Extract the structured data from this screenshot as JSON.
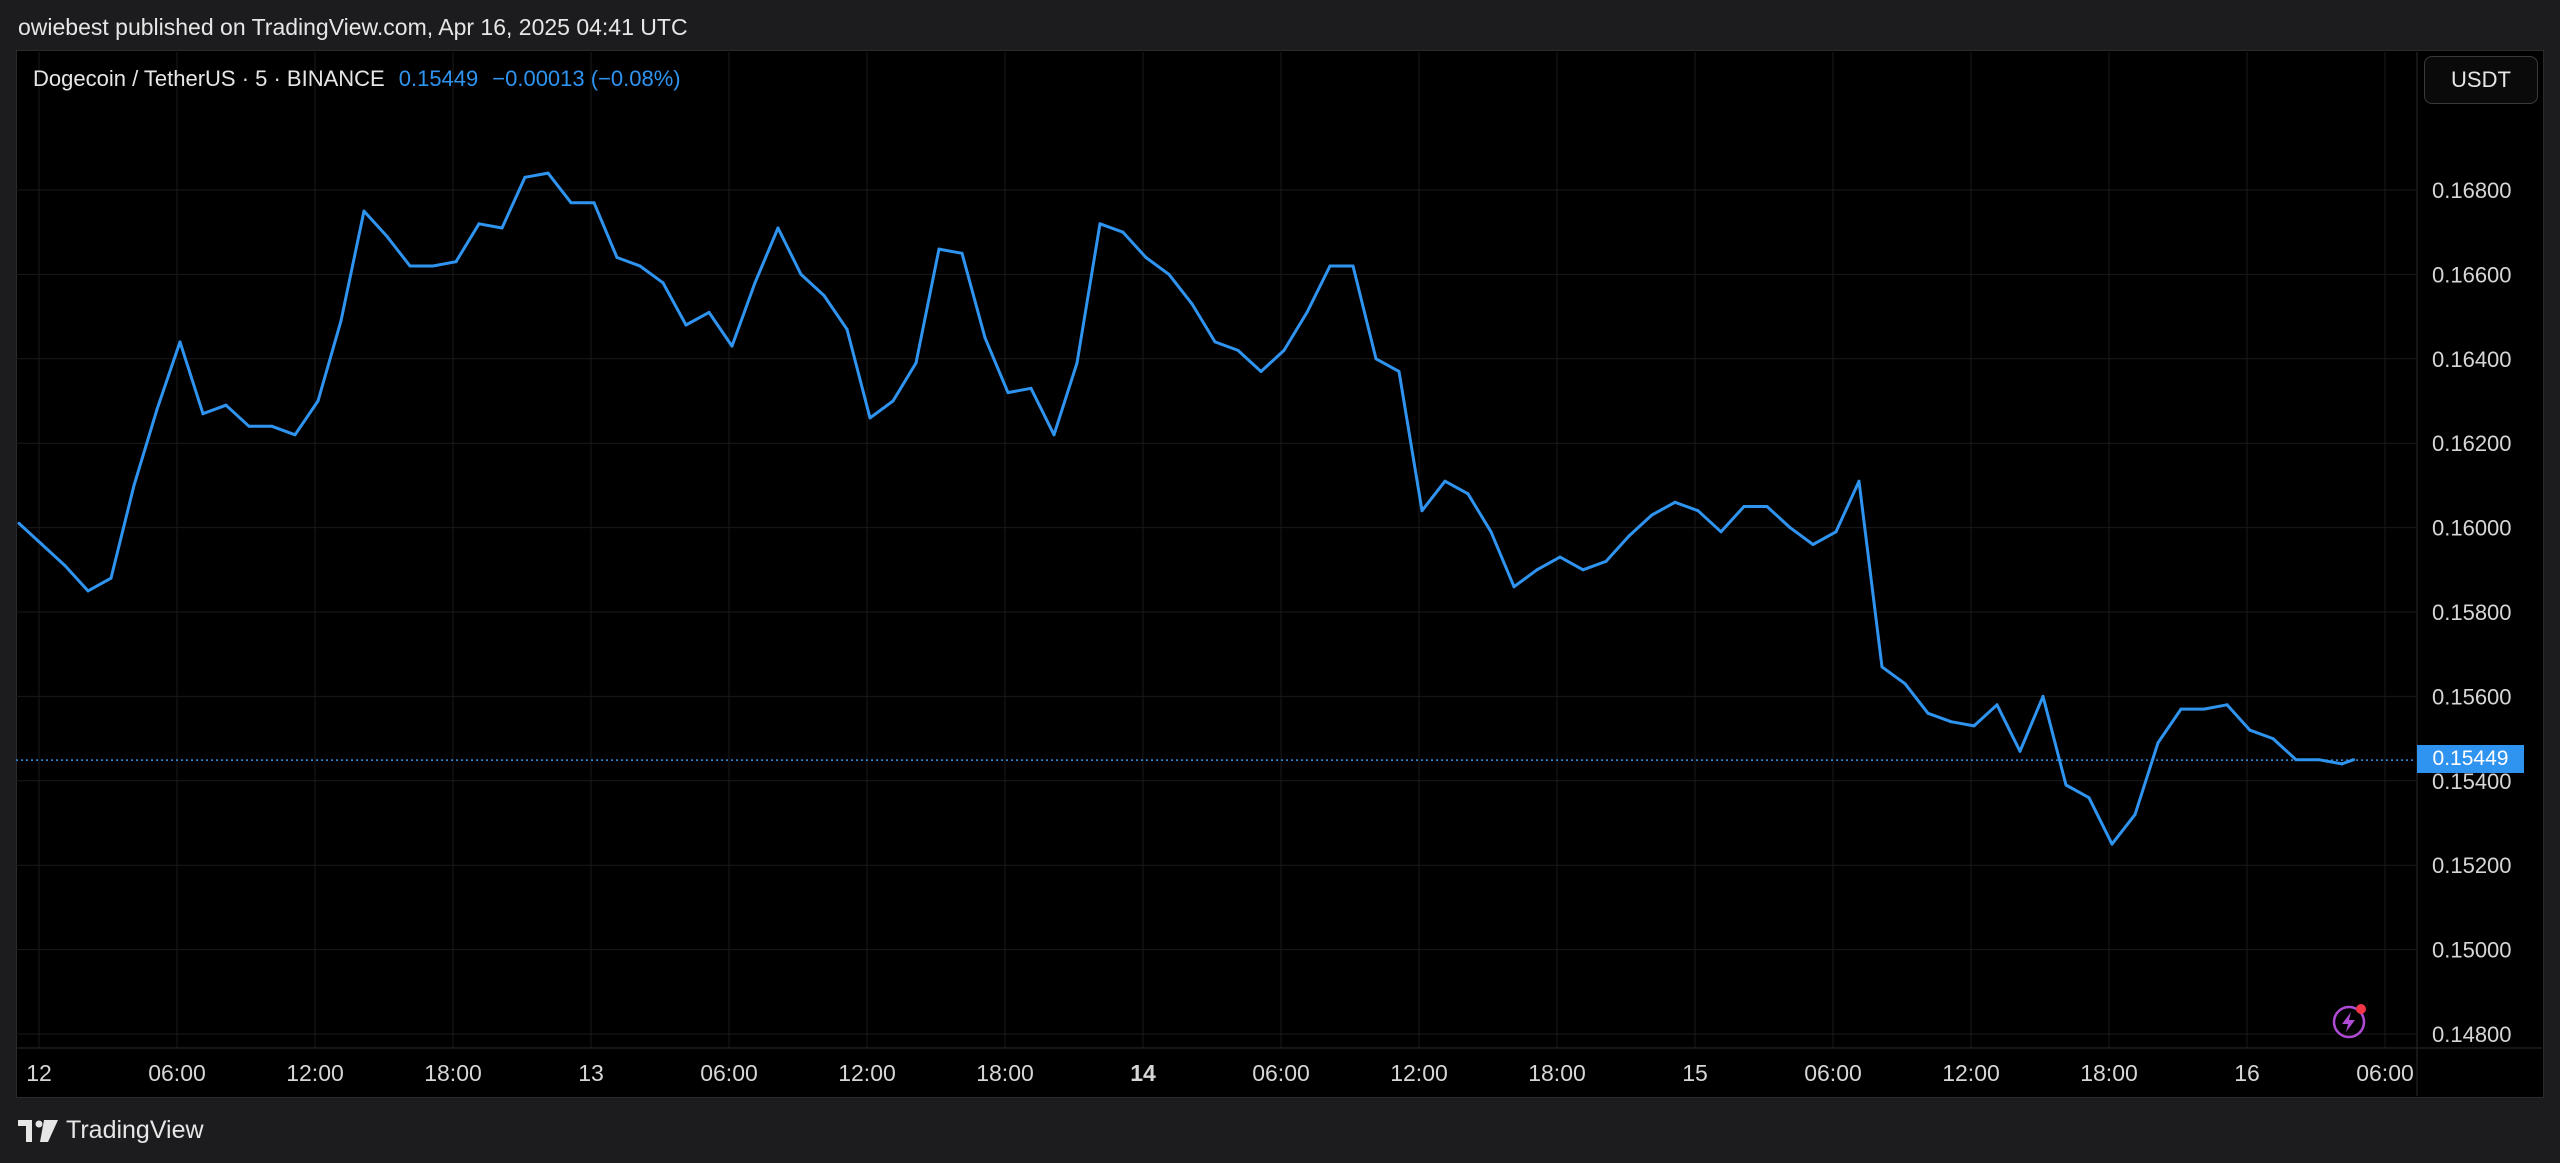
{
  "header": {
    "published_text": "owiebest published on TradingView.com, Apr 16, 2025 04:41 UTC"
  },
  "legend": {
    "symbol": "Dogecoin / TetherUS · 5 · BINANCE",
    "last": "0.15449",
    "change": "−0.00013 (−0.08%)"
  },
  "currency_button": "USDT",
  "footer": {
    "brand_text": "TradingView",
    "logo_icon": "tradingview-logo-icon"
  },
  "colors": {
    "series": "#2f94f0",
    "background": "#000000",
    "grid": "#1a1a1a",
    "text": "#e6e6e6"
  },
  "chart_data": {
    "type": "line",
    "title": "",
    "xlabel": "",
    "ylabel": "",
    "ylim": [
      0.148,
      0.1702
    ],
    "grid": true,
    "legend_placement": "top-left",
    "current_price": 0.15449,
    "y_ticks": [
      "0.16800",
      "0.16600",
      "0.16400",
      "0.16200",
      "0.16000",
      "0.15800",
      "0.15600",
      "0.15400",
      "0.15200",
      "0.15000",
      "0.14800"
    ],
    "x_ticks": [
      "12",
      "06:00",
      "12:00",
      "18:00",
      "13",
      "06:00",
      "12:00",
      "18:00",
      "14",
      "06:00",
      "12:00",
      "18:00",
      "15",
      "06:00",
      "12:00",
      "18:00",
      "16",
      "06:00"
    ],
    "bold_x_tick": "14",
    "x_start": "Apr 12 00:00",
    "x_unit": "hours",
    "series": [
      {
        "x": [
          0,
          1,
          2,
          3,
          4,
          5,
          6,
          7,
          8,
          9,
          10,
          11,
          12,
          13,
          14,
          15,
          16,
          17,
          18,
          19,
          20,
          21,
          22,
          23,
          24,
          25,
          26,
          27,
          28,
          29,
          30,
          31,
          32,
          33,
          34,
          35,
          36,
          37,
          38,
          39,
          40,
          41,
          42,
          43,
          44,
          45,
          46,
          47,
          48,
          49,
          50,
          51,
          52,
          53,
          54,
          55,
          56,
          57,
          58,
          59,
          60,
          61,
          62,
          63,
          64,
          65,
          66,
          67,
          68,
          69,
          70,
          71,
          72,
          73,
          74,
          75,
          76,
          77,
          78,
          79,
          80,
          81,
          82,
          83,
          84,
          85,
          86,
          87,
          88,
          89,
          90,
          91,
          92,
          93,
          94,
          95,
          96,
          97,
          98,
          99,
          100,
          101,
          101.5
        ],
        "values": [
          0.1601,
          0.1596,
          0.1591,
          0.1585,
          0.1588,
          0.161,
          0.1628,
          0.1644,
          0.1627,
          0.1629,
          0.1624,
          0.1624,
          0.1622,
          0.163,
          0.1649,
          0.1675,
          0.1669,
          0.1662,
          0.1662,
          0.1663,
          0.1672,
          0.1671,
          0.1683,
          0.1684,
          0.1677,
          0.1677,
          0.1664,
          0.1662,
          0.1658,
          0.1648,
          0.1651,
          0.1643,
          0.1658,
          0.1671,
          0.166,
          0.1655,
          0.1647,
          0.1626,
          0.163,
          0.1639,
          0.1666,
          0.1665,
          0.1645,
          0.1632,
          0.1633,
          0.1622,
          0.1639,
          0.1672,
          0.167,
          0.1664,
          0.166,
          0.1653,
          0.1644,
          0.1642,
          0.1637,
          0.1642,
          0.1651,
          0.1662,
          0.1662,
          0.164,
          0.1637,
          0.1604,
          0.1611,
          0.1608,
          0.1599,
          0.1586,
          0.159,
          0.1593,
          0.159,
          0.1592,
          0.1598,
          0.1603,
          0.1606,
          0.1604,
          0.1599,
          0.1605,
          0.1605,
          0.16,
          0.1596,
          0.1599,
          0.1611,
          0.1567,
          0.1563,
          0.1556,
          0.1554,
          0.1553,
          0.1558,
          0.1547,
          0.156,
          0.1539,
          0.1536,
          0.1525,
          0.1532,
          0.1549,
          0.1557,
          0.1557,
          0.1558,
          0.1552,
          0.155,
          0.1545,
          0.1545,
          0.1544,
          0.1545
        ]
      }
    ]
  }
}
